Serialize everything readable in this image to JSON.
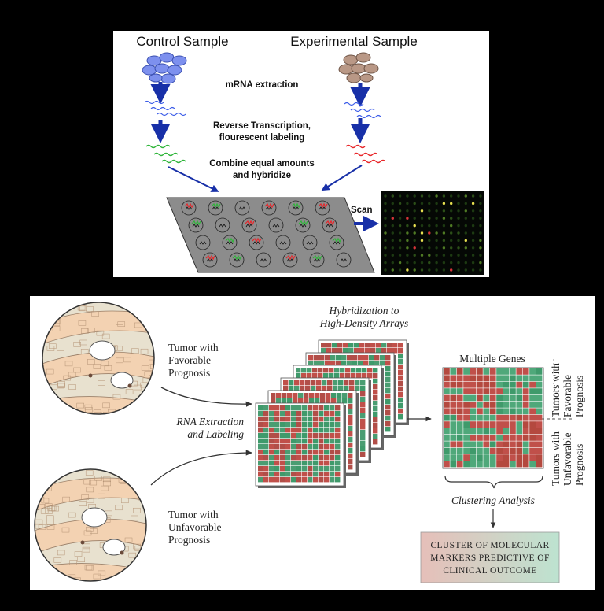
{
  "top_panel": {
    "control_label": "Control Sample",
    "experimental_label": "Experimental Sample",
    "step1": "mRNA extraction",
    "step2_line1": "Reverse Transcription,",
    "step2_line2": "flourescent labeling",
    "step3_line1": "Combine equal amounts",
    "step3_line2": "and hybridize",
    "scan_label": "Scan",
    "colors": {
      "control": "#6b80e8",
      "experimental": "#a08272",
      "red_cdna": "#e8262a",
      "green_cdna": "#2fb53a",
      "blue_mrna": "#3a5be8",
      "arrow": "#1830a8",
      "slide": "#8a8a8a"
    }
  },
  "bottom_panel": {
    "favorable_line1": "Tumor with",
    "favorable_line2": "Favorable",
    "favorable_line3": "Prognosis",
    "unfavorable_line1": "Tumor with",
    "unfavorable_line2": "Unfavorable",
    "unfavorable_line3": "Prognosis",
    "rna_line1": "RNA Extraction",
    "rna_line2": "and Labeling",
    "hyb_line1": "Hybridization to",
    "hyb_line2": "High-Density Arrays",
    "multiple_genes": "Multiple Genes",
    "clustering": "Clustering Analysis",
    "side_fav_line1": "Tumors with",
    "side_fav_line2": "Favorable",
    "side_fav_line3": "Prognosis",
    "side_unfav_line1": "Tumors with",
    "side_unfav_line2": "Unfavorable",
    "side_unfav_line3": "Prognosis",
    "result_line1": "CLUSTER OF MOLECULAR",
    "result_line2": "MARKERS PREDICTIVE OF",
    "result_line3": "CLINICAL OUTCOME",
    "colors": {
      "array_red": "#c0504a",
      "array_green": "#3f9a6b",
      "tissue": "#f1d3b6",
      "stroma": "#e6e0cf",
      "result_bg_left": "#e4c3bd",
      "result_bg_right": "#bfe0cf"
    }
  }
}
